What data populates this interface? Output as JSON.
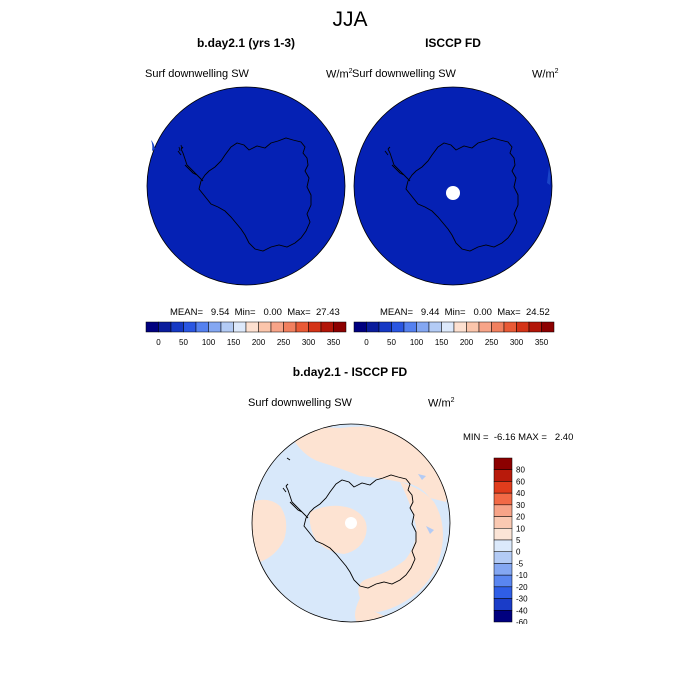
{
  "title": "JJA",
  "panels": [
    {
      "title": "b.day2.1 (yrs 1-3)",
      "variable": "Surf downwelling SW",
      "units_base": "W/m",
      "units_exp": "2",
      "stats": "MEAN=   9.54  Min=   0.00  Max=  27.43",
      "fill": "#0521b4"
    },
    {
      "title": "ISCCP FD",
      "variable": "Surf downwelling SW",
      "units_base": "W/m",
      "units_exp": "2",
      "stats": "MEAN=   9.44  Min=   0.00  Max=  24.52",
      "fill": "#0521b4"
    },
    {
      "title": "b.day2.1 - ISCCP FD",
      "variable": "Surf downwelling SW",
      "units_base": "W/m",
      "units_exp": "2",
      "stats": "MIN =  -6.16 MAX =   2.40"
    }
  ],
  "colorbar_abs": {
    "colors": [
      "#00007f",
      "#0a1c9c",
      "#1538c4",
      "#2a56e2",
      "#5581f0",
      "#84a7f2",
      "#b3cbf5",
      "#dde9fb",
      "#fde0d0",
      "#fbc5ab",
      "#f7a488",
      "#f1805f",
      "#e95a36",
      "#d43317",
      "#b21508",
      "#8c0000"
    ],
    "labels": [
      "0",
      "50",
      "100",
      "150",
      "200",
      "250",
      "300",
      "350"
    ]
  },
  "colorbar_diff": {
    "colors": [
      "#8c0000",
      "#b81a0b",
      "#e03c1c",
      "#f26a46",
      "#f7a488",
      "#fac9b2",
      "#fbe4d6",
      "#dbe9fb",
      "#b3cbf5",
      "#84a7f2",
      "#5a86f0",
      "#2f5ee6",
      "#1a3cc8",
      "#00007f"
    ],
    "labels": [
      "80",
      "60",
      "40",
      "30",
      "20",
      "10",
      "5",
      "0",
      "-5",
      "-10",
      "-20",
      "-30",
      "-40",
      "-60",
      "-80"
    ]
  },
  "diff_colors": {
    "ocean": "#d8e8fa",
    "land": "#fde3d2",
    "hole": "#ffffff"
  }
}
